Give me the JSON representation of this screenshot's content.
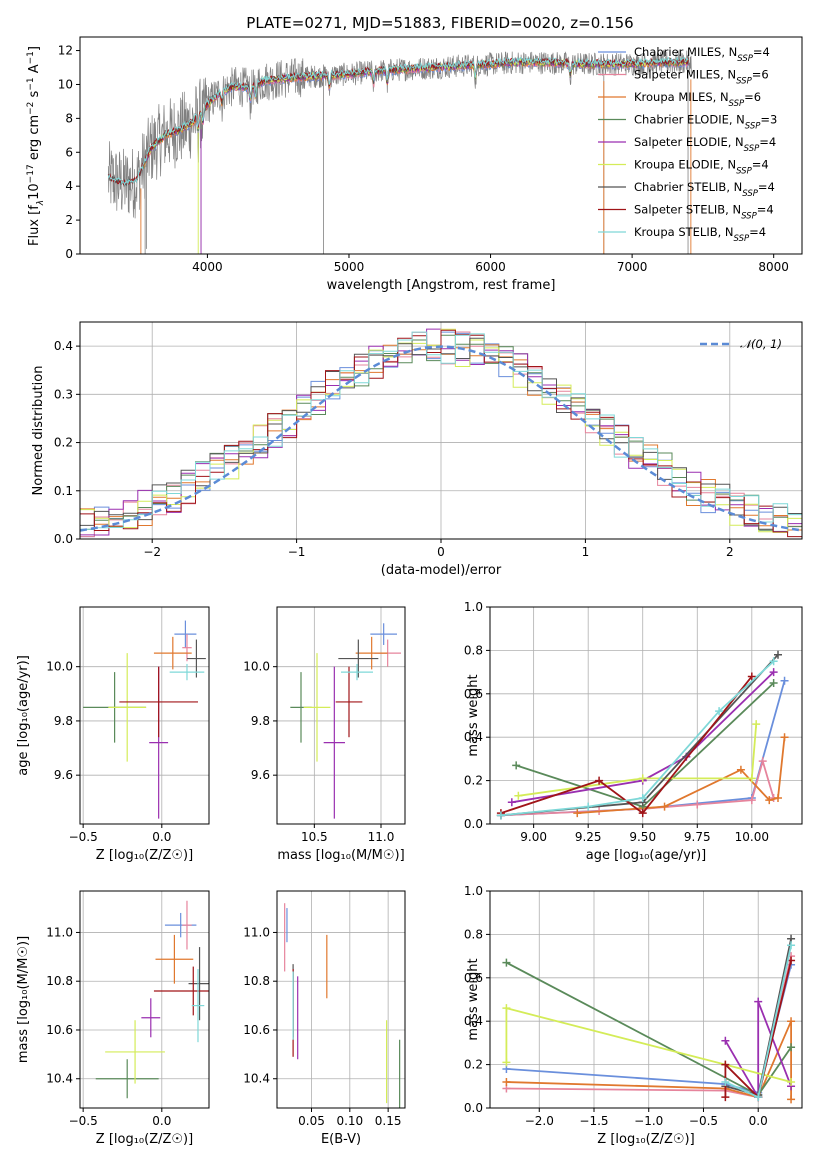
{
  "figure_title": "PLATE=0271, MJD=51883, FIBERID=0020, z=0.156",
  "colors": {
    "Chabrier MILES": "#6a8fdc",
    "Salpeter MILES": "#e6849c",
    "Kroupa MILES": "#e0782e",
    "Chabrier ELODIE": "#5a8a5a",
    "Salpeter ELODIE": "#9a2fb0",
    "Kroupa ELODIE": "#d4ec58",
    "Chabrier STELIB": "#555555",
    "Salpeter STELIB": "#a01418",
    "Kroupa STELIB": "#7fd8d8",
    "data": "#808080",
    "normal": "#5b8bd6"
  },
  "chart_data": [
    {
      "id": "spectrum",
      "type": "line",
      "title": "PLATE=0271, MJD=51883, FIBERID=0020, z=0.156",
      "xlabel": "wavelength [Angstrom, rest frame]",
      "ylabel_parts": [
        "Flux [f",
        "λ",
        "10",
        "−17",
        " erg cm",
        "−2",
        " s",
        "−1",
        " A",
        "−1",
        "]"
      ],
      "xlim": [
        3100,
        8200
      ],
      "ylim": [
        0,
        12.8
      ],
      "xticks": [
        4000,
        5000,
        6000,
        7000,
        8000
      ],
      "yticks": [
        0,
        2,
        4,
        6,
        8,
        10,
        12
      ],
      "grid": false,
      "legend_position": "top-right",
      "legend": [
        {
          "label": "Chabrier MILES, N",
          "sub": "SSP",
          "eq": "=4",
          "color": "#6a8fdc"
        },
        {
          "label": "Salpeter MILES, N",
          "sub": "SSP",
          "eq": "=6",
          "color": "#e6849c"
        },
        {
          "label": "Kroupa MILES, N",
          "sub": "SSP",
          "eq": "=6",
          "color": "#e0782e"
        },
        {
          "label": "Chabrier ELODIE, N",
          "sub": "SSP",
          "eq": "=3",
          "color": "#5a8a5a"
        },
        {
          "label": "Salpeter ELODIE, N",
          "sub": "SSP",
          "eq": "=4",
          "color": "#9a2fb0"
        },
        {
          "label": "Kroupa ELODIE, N",
          "sub": "SSP",
          "eq": "=4",
          "color": "#d4ec58"
        },
        {
          "label": "Chabrier STELIB, N",
          "sub": "SSP",
          "eq": "=4",
          "color": "#555555"
        },
        {
          "label": "Salpeter STELIB, N",
          "sub": "SSP",
          "eq": "=4",
          "color": "#a01418"
        },
        {
          "label": "Kroupa STELIB, N",
          "sub": "SSP",
          "eq": "=4",
          "color": "#7fd8d8"
        }
      ],
      "continuum": {
        "x": [
          3300,
          3400,
          3500,
          3600,
          3700,
          3800,
          3900,
          4000,
          4100,
          4200,
          4300,
          4400,
          4500,
          4600,
          4800,
          5000,
          5200,
          5400,
          5600,
          5800,
          6000,
          6200,
          6400,
          6600,
          6800,
          7000,
          7200,
          7400
        ],
        "y": [
          4.5,
          4.1,
          4.3,
          6.2,
          7.0,
          7.3,
          7.8,
          8.8,
          9.6,
          9.9,
          9.8,
          10.2,
          10.3,
          10.4,
          10.5,
          10.6,
          10.8,
          10.9,
          11.0,
          11.1,
          11.2,
          11.3,
          11.3,
          11.2,
          11.2,
          11.2,
          11.3,
          11.3
        ]
      }
    },
    {
      "id": "residuals",
      "type": "histogram",
      "xlabel": "(data-model)/error",
      "ylabel": "Normed distribution",
      "xlim": [
        -2.5,
        2.5
      ],
      "ylim": [
        0,
        0.45
      ],
      "xticks": [
        -2,
        -1,
        0,
        1,
        2
      ],
      "yticks": [
        0.0,
        0.1,
        0.2,
        0.3,
        0.4
      ],
      "grid": true,
      "legend_position": "top-right",
      "legend": [
        {
          "label": "𝒩(0, 1)",
          "color": "#5b8bd6",
          "dashed": true
        }
      ],
      "bin_width": 0.1
    },
    {
      "id": "age_vs_Z",
      "type": "errorbar",
      "xlabel": "Z [log₁₀(Z/Z☉)]",
      "ylabel": "age  [log₁₀(age/yr)]",
      "xlim": [
        -0.52,
        0.3
      ],
      "ylim": [
        9.42,
        10.22
      ],
      "xticks": [
        -0.5,
        0.0
      ],
      "yticks": [
        9.6,
        9.8,
        10.0
      ],
      "grid": true,
      "points": [
        {
          "model": "Chabrier MILES",
          "x": 0.15,
          "xerr": 0.07,
          "y": 10.12,
          "yerr": 0.05
        },
        {
          "model": "Salpeter MILES",
          "x": 0.16,
          "xerr": 0.03,
          "y": 10.07,
          "yerr": 0.05
        },
        {
          "model": "Kroupa MILES",
          "x": 0.07,
          "xerr": 0.12,
          "y": 10.05,
          "yerr": 0.06
        },
        {
          "model": "Chabrier ELODIE",
          "x": -0.3,
          "xerr": 0.2,
          "y": 9.85,
          "yerr": 0.13
        },
        {
          "model": "Salpeter ELODIE",
          "x": -0.02,
          "xerr": 0.06,
          "y": 9.72,
          "yerr": 0.28
        },
        {
          "model": "Kroupa ELODIE",
          "x": -0.22,
          "xerr": 0.12,
          "y": 9.85,
          "yerr": 0.2
        },
        {
          "model": "Chabrier STELIB",
          "x": 0.22,
          "xerr": 0.06,
          "y": 10.03,
          "yerr": 0.07
        },
        {
          "model": "Salpeter STELIB",
          "x": -0.02,
          "xerr": 0.25,
          "y": 9.87,
          "yerr": 0.13
        },
        {
          "model": "Kroupa STELIB",
          "x": 0.16,
          "xerr": 0.11,
          "y": 9.98,
          "yerr": 0.03
        }
      ]
    },
    {
      "id": "age_vs_mass",
      "type": "errorbar",
      "xlabel": "mass [log₁₀(M/M☉)]",
      "ylabel": "",
      "xlim": [
        10.22,
        11.18
      ],
      "ylim": [
        9.42,
        10.22
      ],
      "xticks": [
        10.5,
        11.0
      ],
      "yticks": [
        9.6,
        9.8,
        10.0
      ],
      "grid": true,
      "points": [
        {
          "model": "Chabrier MILES",
          "x": 11.02,
          "xerr": 0.1,
          "y": 10.12,
          "yerr": 0.04
        },
        {
          "model": "Salpeter MILES",
          "x": 11.05,
          "xerr": 0.1,
          "y": 10.05,
          "yerr": 0.05
        },
        {
          "model": "Kroupa MILES",
          "x": 10.93,
          "xerr": 0.12,
          "y": 10.05,
          "yerr": 0.06
        },
        {
          "model": "Chabrier ELODIE",
          "x": 10.4,
          "xerr": 0.08,
          "y": 9.85,
          "yerr": 0.13
        },
        {
          "model": "Salpeter ELODIE",
          "x": 10.65,
          "xerr": 0.08,
          "y": 9.72,
          "yerr": 0.28
        },
        {
          "model": "Kroupa ELODIE",
          "x": 10.52,
          "xerr": 0.1,
          "y": 9.85,
          "yerr": 0.2
        },
        {
          "model": "Chabrier STELIB",
          "x": 10.83,
          "xerr": 0.15,
          "y": 10.03,
          "yerr": 0.07
        },
        {
          "model": "Salpeter STELIB",
          "x": 10.76,
          "xerr": 0.1,
          "y": 9.87,
          "yerr": 0.13
        },
        {
          "model": "Kroupa STELIB",
          "x": 10.82,
          "xerr": 0.12,
          "y": 9.98,
          "yerr": 0.03
        }
      ]
    },
    {
      "id": "weight_vs_age",
      "type": "line",
      "xlabel": "age  [log₁₀(age/yr)]",
      "ylabel": "mass weight",
      "xlim": [
        8.8,
        10.23
      ],
      "ylim": [
        0,
        1.0
      ],
      "xticks": [
        9.0,
        9.25,
        9.5,
        9.75,
        10.0
      ],
      "yticks": [
        0.0,
        0.2,
        0.4,
        0.6,
        0.8,
        1.0
      ],
      "grid": true,
      "series": [
        {
          "model": "Chabrier MILES",
          "x": [
            8.85,
            9.5,
            10.0,
            10.15
          ],
          "y": [
            0.04,
            0.07,
            0.12,
            0.66
          ]
        },
        {
          "model": "Salpeter MILES",
          "x": [
            8.85,
            9.3,
            9.5,
            9.75,
            10.0,
            10.05,
            10.1
          ],
          "y": [
            0.04,
            0.06,
            0.07,
            0.09,
            0.11,
            0.29,
            0.12
          ]
        },
        {
          "model": "Kroupa MILES",
          "x": [
            9.2,
            9.6,
            9.95,
            10.08,
            10.12,
            10.15
          ],
          "y": [
            0.05,
            0.08,
            0.25,
            0.11,
            0.12,
            0.4
          ]
        },
        {
          "model": "Chabrier ELODIE",
          "x": [
            8.92,
            9.5,
            10.1
          ],
          "y": [
            0.27,
            0.08,
            0.65
          ]
        },
        {
          "model": "Salpeter ELODIE",
          "x": [
            8.9,
            9.5,
            9.7,
            10.1
          ],
          "y": [
            0.1,
            0.2,
            0.31,
            0.7
          ]
        },
        {
          "model": "Kroupa ELODIE",
          "x": [
            8.93,
            9.5,
            10.0,
            10.02
          ],
          "y": [
            0.13,
            0.21,
            0.21,
            0.46
          ]
        },
        {
          "model": "Chabrier STELIB",
          "x": [
            8.85,
            9.5,
            10.12
          ],
          "y": [
            0.04,
            0.1,
            0.78
          ]
        },
        {
          "model": "Salpeter STELIB",
          "x": [
            8.85,
            9.3,
            9.5,
            10.0
          ],
          "y": [
            0.05,
            0.2,
            0.05,
            0.68
          ]
        },
        {
          "model": "Kroupa STELIB",
          "x": [
            8.85,
            9.25,
            9.5,
            9.85,
            10.1
          ],
          "y": [
            0.04,
            0.08,
            0.12,
            0.52,
            0.75
          ]
        }
      ]
    },
    {
      "id": "mass_vs_Z",
      "type": "errorbar",
      "xlabel": "Z [log₁₀(Z/Z☉)]",
      "ylabel": "mass [log₁₀(M/M☉)]",
      "xlim": [
        -0.52,
        0.3
      ],
      "ylim": [
        10.28,
        11.17
      ],
      "xticks": [
        -0.5,
        0.0
      ],
      "yticks": [
        10.4,
        10.6,
        10.8,
        11.0
      ],
      "grid": true,
      "points": [
        {
          "model": "Chabrier MILES",
          "x": 0.12,
          "xerr": 0.1,
          "y": 11.03,
          "yerr": 0.05
        },
        {
          "model": "Salpeter MILES",
          "x": 0.16,
          "xerr": 0.03,
          "y": 11.03,
          "yerr": 0.1
        },
        {
          "model": "Kroupa MILES",
          "x": 0.08,
          "xerr": 0.12,
          "y": 10.89,
          "yerr": 0.1
        },
        {
          "model": "Chabrier ELODIE",
          "x": -0.22,
          "xerr": 0.2,
          "y": 10.4,
          "yerr": 0.08
        },
        {
          "model": "Salpeter ELODIE",
          "x": -0.07,
          "xerr": 0.06,
          "y": 10.65,
          "yerr": 0.08
        },
        {
          "model": "Kroupa ELODIE",
          "x": -0.17,
          "xerr": 0.19,
          "y": 10.51,
          "yerr": 0.13
        },
        {
          "model": "Chabrier STELIB",
          "x": 0.24,
          "xerr": 0.07,
          "y": 10.79,
          "yerr": 0.15
        },
        {
          "model": "Salpeter STELIB",
          "x": 0.2,
          "xerr": 0.25,
          "y": 10.76,
          "yerr": 0.1
        },
        {
          "model": "Kroupa STELIB",
          "x": 0.23,
          "xerr": 0.04,
          "y": 10.7,
          "yerr": 0.15
        }
      ]
    },
    {
      "id": "mass_vs_EBV",
      "type": "errorbar",
      "xlabel": "E(B-V)",
      "ylabel": "",
      "xlim": [
        0.005,
        0.172
      ],
      "ylim": [
        10.28,
        11.17
      ],
      "xticks": [
        0.05,
        0.1,
        0.15
      ],
      "yticks": [
        10.4,
        10.6,
        10.8,
        11.0
      ],
      "grid": true,
      "points": [
        {
          "model": "Chabrier MILES",
          "x": 0.018,
          "y": 11.03,
          "yerr": 0.07
        },
        {
          "model": "Salpeter MILES",
          "x": 0.015,
          "y": 10.98,
          "yerr": 0.14
        },
        {
          "model": "Kroupa MILES",
          "x": 0.07,
          "y": 10.86,
          "yerr": 0.13
        },
        {
          "model": "Chabrier ELODIE",
          "x": 0.165,
          "y": 10.41,
          "yerr": 0.15
        },
        {
          "model": "Salpeter ELODIE",
          "x": 0.032,
          "y": 10.65,
          "yerr": 0.17
        },
        {
          "model": "Kroupa ELODIE",
          "x": 0.148,
          "y": 10.47,
          "yerr": 0.17
        },
        {
          "model": "Chabrier STELIB",
          "x": 0.026,
          "y": 10.72,
          "yerr": 0.15
        },
        {
          "model": "Salpeter STELIB",
          "x": 0.026,
          "y": 10.67,
          "yerr": 0.18
        },
        {
          "model": "Kroupa STELIB",
          "x": 0.026,
          "y": 10.7,
          "yerr": 0.14
        }
      ]
    },
    {
      "id": "weight_vs_Z",
      "type": "line",
      "xlabel": "Z [log₁₀(Z/Z☉)]",
      "ylabel": "mass weight",
      "xlim": [
        -2.45,
        0.4
      ],
      "ylim": [
        0,
        1.0
      ],
      "xticks": [
        -2.0,
        -1.5,
        -1.0,
        -0.5,
        0.0
      ],
      "yticks": [
        0.0,
        0.2,
        0.4,
        0.6,
        0.8,
        1.0
      ],
      "grid": true,
      "series": [
        {
          "model": "Chabrier MILES",
          "x": [
            -2.3,
            -0.3,
            0.0,
            0.3
          ],
          "y": [
            0.18,
            0.11,
            0.07,
            0.66
          ]
        },
        {
          "model": "Salpeter MILES",
          "x": [
            -2.3,
            -0.3,
            0.0,
            0.3
          ],
          "y": [
            0.09,
            0.08,
            0.05,
            0.7
          ]
        },
        {
          "model": "Kroupa MILES",
          "x": [
            -2.3,
            -0.3,
            0.0,
            0.3,
            0.3
          ],
          "y": [
            0.12,
            0.09,
            0.05,
            0.4,
            0.04
          ]
        },
        {
          "model": "Chabrier ELODIE",
          "x": [
            -2.3,
            0.0,
            0.3
          ],
          "y": [
            0.67,
            0.06,
            0.28
          ]
        },
        {
          "model": "Salpeter ELODIE",
          "x": [
            -0.3,
            0.0,
            0.0,
            0.3
          ],
          "y": [
            0.31,
            0.05,
            0.49,
            0.1
          ]
        },
        {
          "model": "Kroupa ELODIE",
          "x": [
            -2.3,
            -2.3,
            -0.3,
            0.3
          ],
          "y": [
            0.21,
            0.46,
            0.2,
            0.12
          ]
        },
        {
          "model": "Chabrier STELIB",
          "x": [
            -0.3,
            0.0,
            0.3
          ],
          "y": [
            0.1,
            0.06,
            0.78
          ]
        },
        {
          "model": "Salpeter STELIB",
          "x": [
            -0.3,
            -0.3,
            0.0,
            0.3
          ],
          "y": [
            0.05,
            0.2,
            0.05,
            0.68
          ]
        },
        {
          "model": "Kroupa STELIB",
          "x": [
            -0.3,
            0.0,
            0.3
          ],
          "y": [
            0.12,
            0.05,
            0.75
          ]
        }
      ]
    }
  ]
}
